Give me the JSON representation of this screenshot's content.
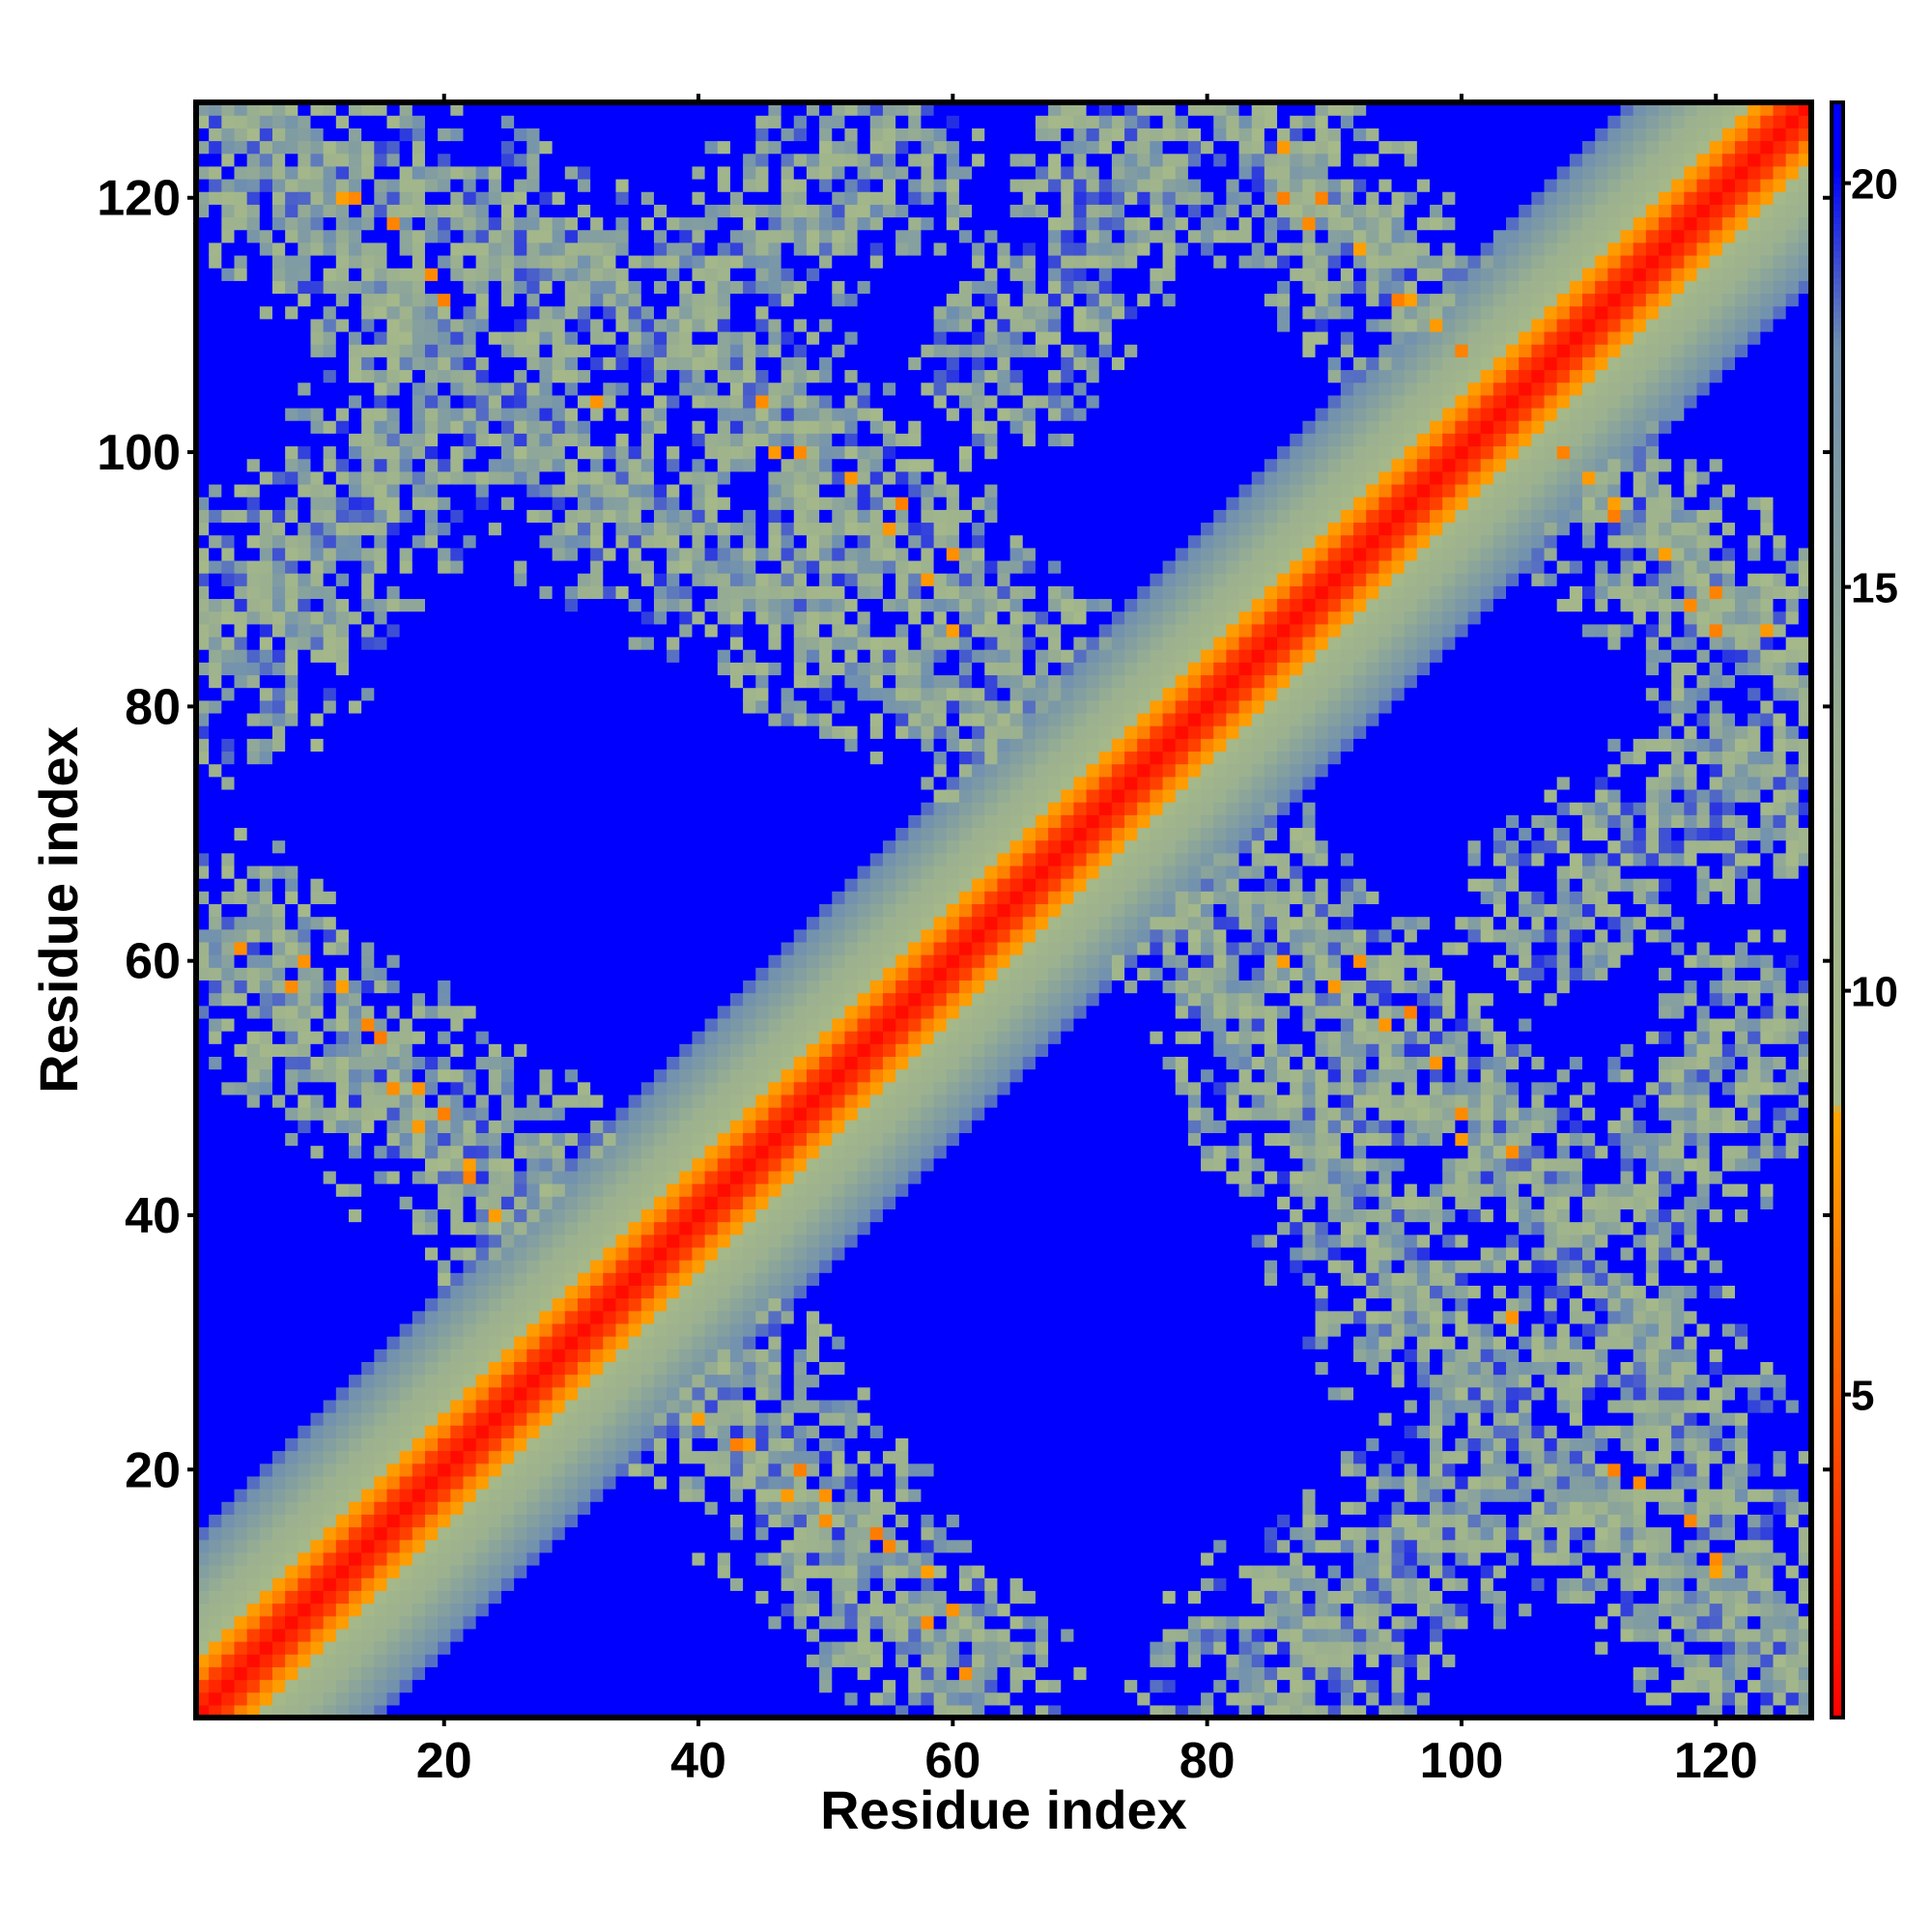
{
  "chart_data": {
    "type": "heatmap",
    "title": "",
    "xlabel": "Residue index",
    "ylabel": "Residue index",
    "n_residues": 127,
    "xlim": [
      1,
      127
    ],
    "ylim": [
      1,
      127
    ],
    "x_ticks": [
      20,
      40,
      60,
      80,
      100,
      120
    ],
    "y_ticks": [
      20,
      40,
      60,
      80,
      100,
      120
    ],
    "colorbar": {
      "range": [
        1,
        21
      ],
      "ticks": [
        5,
        10,
        15,
        20
      ],
      "stops": [
        {
          "value": 1,
          "color": "#ff0000"
        },
        {
          "value": 5,
          "color": "#ff5a00"
        },
        {
          "value": 8.5,
          "color": "#ffa500"
        },
        {
          "value": 8.6,
          "color": "#a8bb88"
        },
        {
          "value": 13,
          "color": "#9bb08f"
        },
        {
          "value": 18,
          "color": "#6f8fb0"
        },
        {
          "value": 20.2,
          "color": "#0000ff"
        },
        {
          "value": 21,
          "color": "#0000ff"
        }
      ]
    },
    "background_value": 21,
    "diagonal_band": {
      "center_width": 2,
      "orange_width": 4,
      "green_width": 14
    },
    "contact_segments": [
      {
        "from": [
          2,
          126
        ],
        "to": [
          30,
          98
        ]
      },
      {
        "from": [
          30,
          98
        ],
        "to": [
          66,
          78
        ]
      },
      {
        "from": [
          2,
          62
        ],
        "to": [
          30,
          40
        ]
      },
      {
        "from": [
          30,
          40
        ],
        "to": [
          60,
          2
        ]
      },
      {
        "from": [
          84,
          124
        ],
        "to": [
          126,
          82
        ]
      },
      {
        "from": [
          75,
          72
        ],
        "to": [
          107,
          42
        ]
      },
      {
        "from": [
          107,
          42
        ],
        "to": [
          126,
          6
        ]
      },
      {
        "from": [
          2,
          86
        ],
        "to": [
          18,
          100
        ]
      },
      {
        "from": [
          40,
          112
        ],
        "to": [
          54,
          124
        ]
      },
      {
        "from": [
          82,
          4
        ],
        "to": [
          100,
          16
        ]
      },
      {
        "from": [
          108,
          64
        ],
        "to": [
          124,
          76
        ]
      }
    ],
    "hotspots": [
      [
        12,
        120
      ],
      [
        16,
        118
      ],
      [
        20,
        112
      ],
      [
        32,
        104
      ],
      [
        46,
        100
      ],
      [
        52,
        98
      ],
      [
        56,
        96
      ],
      [
        60,
        92
      ],
      [
        4,
        61
      ],
      [
        8,
        58
      ],
      [
        14,
        55
      ],
      [
        16,
        50
      ],
      [
        18,
        47
      ],
      [
        22,
        43
      ],
      [
        24,
        40
      ],
      [
        44,
        22
      ],
      [
        48,
        20
      ],
      [
        50,
        18
      ],
      [
        54,
        15
      ],
      [
        58,
        12
      ],
      [
        60,
        9
      ],
      [
        86,
        120
      ],
      [
        88,
        118
      ],
      [
        92,
        116
      ],
      [
        95,
        112
      ],
      [
        98,
        110
      ],
      [
        100,
        108
      ],
      [
        108,
        100
      ],
      [
        112,
        96
      ],
      [
        116,
        92
      ],
      [
        120,
        89
      ],
      [
        124,
        86
      ],
      [
        86,
        60
      ],
      [
        90,
        58
      ],
      [
        94,
        55
      ],
      [
        98,
        52
      ],
      [
        100,
        48
      ],
      [
        104,
        45
      ],
      [
        114,
        19
      ],
      [
        118,
        16
      ],
      [
        120,
        13
      ]
    ]
  }
}
